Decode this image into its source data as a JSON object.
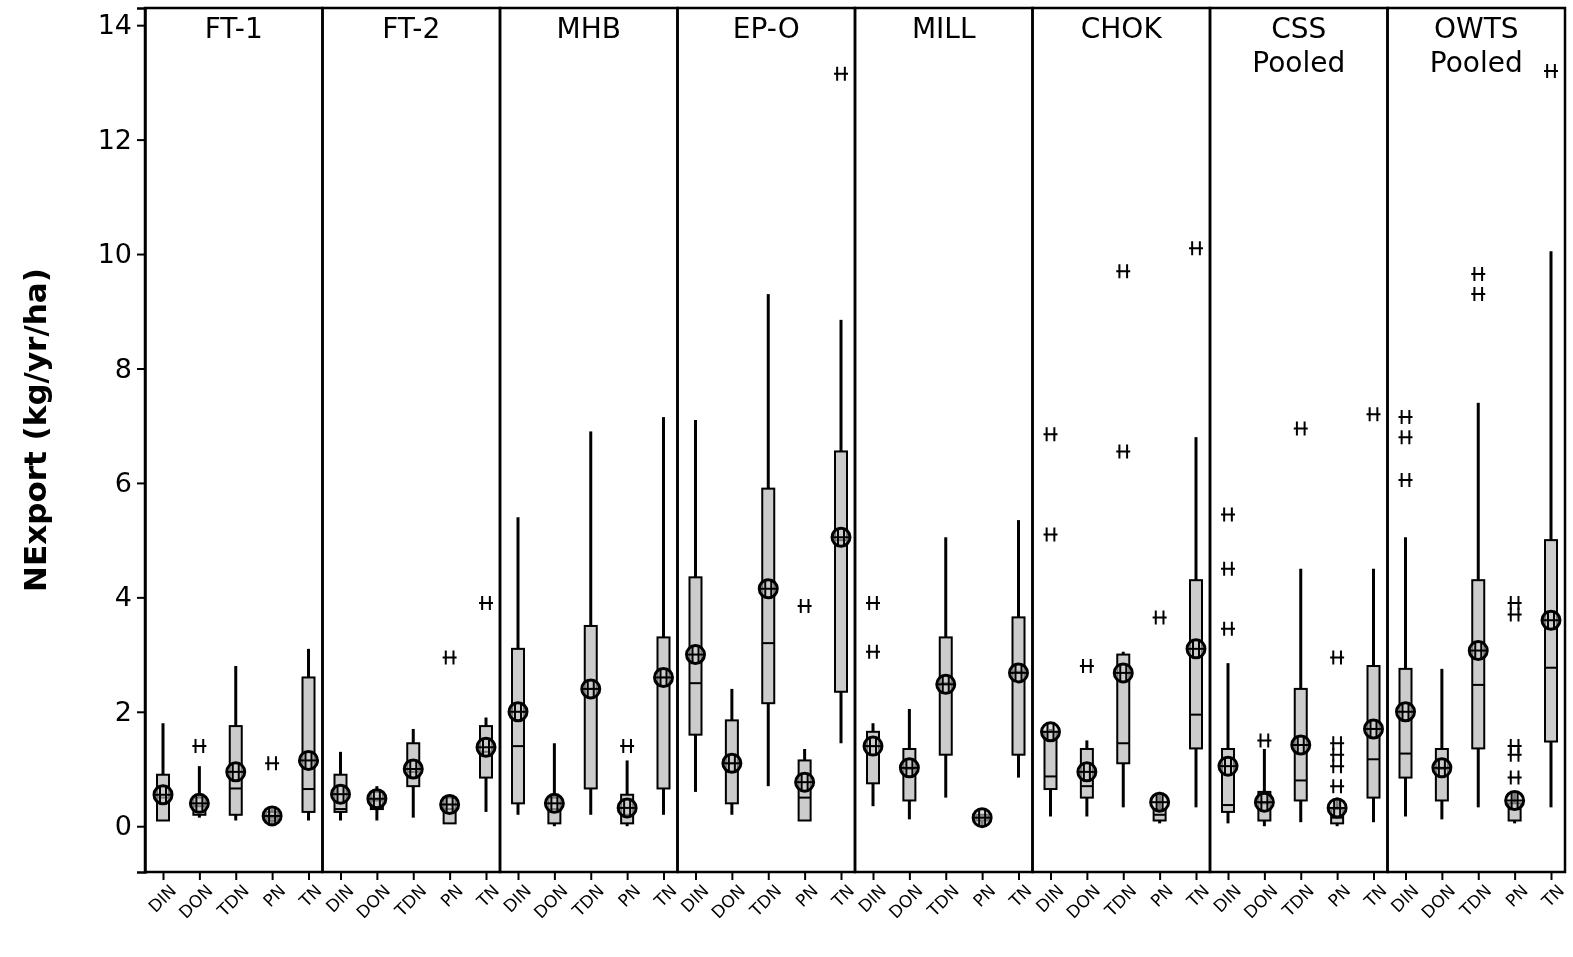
{
  "chart_data": [
    {
      "type": "box",
      "title": "FT-1",
      "ylabel": "NExport (kg/yr/ha)",
      "categories": [
        "DIN",
        "DON",
        "TDN",
        "PN",
        "TN"
      ],
      "ylim": [
        -0.8,
        14.3
      ],
      "yticks": [
        0,
        2,
        4,
        6,
        8,
        10,
        12,
        14
      ],
      "series": [
        {
          "color": "#cccccc",
          "boxes": [
            {
              "low": 0.1,
              "q1": 0.1,
              "median": 0.5,
              "q3": 0.9,
              "high": 1.8,
              "mean": 0.55
            },
            {
              "low": 0.15,
              "q1": 0.2,
              "median": 0.35,
              "q3": 0.5,
              "high": 1.05,
              "mean": 0.4,
              "outliers": [
                1.4
              ]
            },
            {
              "low": 0.1,
              "q1": 0.2,
              "median": 0.66,
              "q3": 1.75,
              "high": 2.8,
              "mean": 0.95
            },
            {
              "low": 0.03,
              "q1": 0.1,
              "median": 0.15,
              "q3": 0.25,
              "high": 0.3,
              "mean": 0.18,
              "outliers": [
                1.1
              ]
            },
            {
              "low": 0.1,
              "q1": 0.25,
              "median": 0.65,
              "q3": 2.6,
              "high": 3.1,
              "mean": 1.15
            }
          ]
        }
      ]
    },
    {
      "type": "box",
      "title": "FT-2",
      "categories": [
        "DIN",
        "DON",
        "TDN",
        "PN",
        "TN"
      ],
      "ylim": [
        -0.8,
        14.3
      ],
      "tick_labels": "x",
      "series": [
        {
          "color": "#cccccc",
          "boxes": [
            {
              "low": 0.1,
              "q1": 0.25,
              "median": 0.3,
              "q3": 0.9,
              "high": 1.3,
              "mean": 0.56
            },
            {
              "low": 0.1,
              "q1": 0.3,
              "median": 0.45,
              "q3": 0.6,
              "high": 0.7,
              "mean": 0.48
            },
            {
              "low": 0.15,
              "q1": 0.7,
              "median": 0.95,
              "q3": 1.45,
              "high": 1.7,
              "mean": 1.0
            },
            {
              "low": 0.05,
              "q1": 0.05,
              "median": 0.3,
              "q3": 0.5,
              "high": 0.55,
              "mean": 0.38,
              "outliers": [
                2.95
              ]
            },
            {
              "low": 0.25,
              "q1": 0.85,
              "median": 1.3,
              "q3": 1.75,
              "high": 1.9,
              "mean": 1.38,
              "outliers": [
                3.9
              ]
            }
          ]
        }
      ]
    },
    {
      "type": "box",
      "title": "MHB",
      "categories": [
        "DIN",
        "DON",
        "TDN",
        "PN",
        "TN"
      ],
      "ylim": [
        -0.8,
        14.3
      ],
      "tick_labels": "x",
      "series": [
        {
          "color": "#cccccc",
          "boxes": [
            {
              "low": 0.2,
              "q1": 0.4,
              "median": 1.4,
              "q3": 3.1,
              "high": 5.4,
              "mean": 2.0
            },
            {
              "low": 0.0,
              "q1": 0.05,
              "median": 0.3,
              "q3": 0.5,
              "high": 1.45,
              "mean": 0.4
            },
            {
              "low": 0.2,
              "q1": 0.66,
              "median": 2.4,
              "q3": 3.5,
              "high": 6.9,
              "mean": 2.4
            },
            {
              "low": 0.0,
              "q1": 0.05,
              "median": 0.2,
              "q3": 0.55,
              "high": 1.15,
              "mean": 0.32,
              "outliers": [
                1.4
              ]
            },
            {
              "low": 0.2,
              "q1": 0.66,
              "median": 2.6,
              "q3": 3.3,
              "high": 7.15,
              "mean": 2.6
            }
          ]
        }
      ]
    },
    {
      "type": "box",
      "title": "EP-O",
      "categories": [
        "DIN",
        "DON",
        "TDN",
        "PN",
        "TN"
      ],
      "ylim": [
        -0.8,
        14.3
      ],
      "tick_labels": "x",
      "series": [
        {
          "color": "#cccccc",
          "boxes": [
            {
              "low": 0.6,
              "q1": 1.6,
              "median": 2.5,
              "q3": 4.35,
              "high": 7.1,
              "mean": 3.0
            },
            {
              "low": 0.2,
              "q1": 0.4,
              "median": 1.1,
              "q3": 1.85,
              "high": 2.4,
              "mean": 1.1
            },
            {
              "low": 0.7,
              "q1": 2.15,
              "median": 3.2,
              "q3": 5.9,
              "high": 9.3,
              "mean": 4.15
            },
            {
              "low": 0.1,
              "q1": 0.1,
              "median": 0.5,
              "q3": 1.15,
              "high": 1.35,
              "mean": 0.77,
              "outliers": [
                3.85
              ]
            },
            {
              "low": 1.45,
              "q1": 2.35,
              "median": 5.0,
              "q3": 6.55,
              "high": 8.85,
              "mean": 5.05,
              "outliers": [
                13.15
              ]
            }
          ]
        }
      ]
    },
    {
      "type": "box",
      "title": "MILL",
      "categories": [
        "DIN",
        "DON",
        "TDN",
        "PN",
        "TN"
      ],
      "ylim": [
        -0.8,
        14.3
      ],
      "tick_labels": "x",
      "series": [
        {
          "color": "#cccccc",
          "boxes": [
            {
              "low": 0.35,
              "q1": 0.75,
              "median": 1.4,
              "q3": 1.65,
              "high": 1.8,
              "mean": 1.4,
              "outliers": [
                3.9,
                3.05
              ]
            },
            {
              "low": 0.12,
              "q1": 0.45,
              "median": 1.0,
              "q3": 1.35,
              "high": 2.05,
              "mean": 1.02
            },
            {
              "low": 0.5,
              "q1": 1.25,
              "median": 2.5,
              "q3": 3.3,
              "high": 5.05,
              "mean": 2.48
            },
            {
              "low": 0.0,
              "q1": 0.1,
              "median": 0.15,
              "q3": 0.2,
              "high": 0.2,
              "mean": 0.15
            },
            {
              "low": 0.85,
              "q1": 1.25,
              "median": 2.7,
              "q3": 3.65,
              "high": 5.35,
              "mean": 2.68
            }
          ]
        }
      ]
    },
    {
      "type": "box",
      "title": "CHOK",
      "categories": [
        "DIN",
        "DON",
        "TDN",
        "PN",
        "TN"
      ],
      "ylim": [
        -0.8,
        14.3
      ],
      "tick_labels": "x",
      "series": [
        {
          "color": "#cccccc",
          "boxes": [
            {
              "low": 0.17,
              "q1": 0.65,
              "median": 0.87,
              "q3": 1.65,
              "high": 1.7,
              "mean": 1.65,
              "outliers": [
                6.85,
                5.1
              ]
            },
            {
              "low": 0.17,
              "q1": 0.5,
              "median": 0.7,
              "q3": 1.35,
              "high": 1.5,
              "mean": 0.95,
              "outliers": [
                2.8
              ]
            },
            {
              "low": 0.33,
              "q1": 1.1,
              "median": 1.45,
              "q3": 3.0,
              "high": 3.05,
              "mean": 2.68,
              "outliers": [
                9.7,
                6.55
              ]
            },
            {
              "low": 0.05,
              "q1": 0.1,
              "median": 0.2,
              "q3": 0.3,
              "high": 0.6,
              "mean": 0.42,
              "outliers": [
                3.65
              ]
            },
            {
              "low": 0.33,
              "q1": 1.36,
              "median": 1.95,
              "q3": 4.3,
              "high": 6.8,
              "mean": 3.1,
              "outliers": [
                10.1
              ]
            }
          ]
        }
      ]
    },
    {
      "type": "box",
      "title": "CSS Pooled",
      "categories": [
        "DIN",
        "DON",
        "TDN",
        "PN",
        "TN"
      ],
      "ylim": [
        -0.8,
        14.3
      ],
      "tick_labels": "x",
      "series": [
        {
          "color": "#cccccc",
          "boxes": [
            {
              "low": 0.05,
              "q1": 0.25,
              "median": 0.37,
              "q3": 1.35,
              "high": 2.85,
              "mean": 1.05,
              "outliers": [
                5.45,
                4.5,
                3.45
              ]
            },
            {
              "low": 0.0,
              "q1": 0.1,
              "median": 0.4,
              "q3": 0.6,
              "high": 1.35,
              "mean": 0.42,
              "outliers": [
                1.5
              ]
            },
            {
              "low": 0.07,
              "q1": 0.45,
              "median": 0.8,
              "q3": 2.4,
              "high": 4.5,
              "mean": 1.42,
              "outliers": [
                6.95
              ]
            },
            {
              "low": 0.0,
              "q1": 0.05,
              "median": 0.15,
              "q3": 0.3,
              "high": 0.5,
              "mean": 0.32,
              "outliers": [
                2.95,
                1.45,
                1.25,
                1.05,
                0.7
              ]
            },
            {
              "low": 0.07,
              "q1": 0.5,
              "median": 1.17,
              "q3": 2.8,
              "high": 4.5,
              "mean": 1.7,
              "outliers": [
                7.2
              ]
            }
          ]
        }
      ]
    },
    {
      "type": "box",
      "title": "OWTS Pooled",
      "categories": [
        "DIN",
        "DON",
        "TDN",
        "PN",
        "TN"
      ],
      "ylim": [
        -0.8,
        14.3
      ],
      "tick_labels": "x",
      "series": [
        {
          "color": "#cccccc",
          "boxes": [
            {
              "low": 0.17,
              "q1": 0.85,
              "median": 1.27,
              "q3": 2.75,
              "high": 5.05,
              "mean": 2.0,
              "outliers": [
                7.15,
                6.8,
                6.05
              ]
            },
            {
              "low": 0.12,
              "q1": 0.45,
              "median": 1.0,
              "q3": 1.35,
              "high": 2.75,
              "mean": 1.02
            },
            {
              "low": 0.33,
              "q1": 1.36,
              "median": 2.47,
              "q3": 4.3,
              "high": 7.4,
              "mean": 3.07,
              "outliers": [
                9.65,
                9.3
              ]
            },
            {
              "low": 0.05,
              "q1": 0.1,
              "median": 0.3,
              "q3": 0.4,
              "high": 0.6,
              "mean": 0.45,
              "outliers": [
                3.9,
                3.7,
                1.4,
                1.25,
                0.85
              ]
            },
            {
              "low": 0.33,
              "q1": 1.48,
              "median": 2.77,
              "q3": 5.0,
              "high": 10.05,
              "mean": 3.6,
              "outliers": [
                13.2
              ]
            }
          ]
        }
      ]
    }
  ]
}
